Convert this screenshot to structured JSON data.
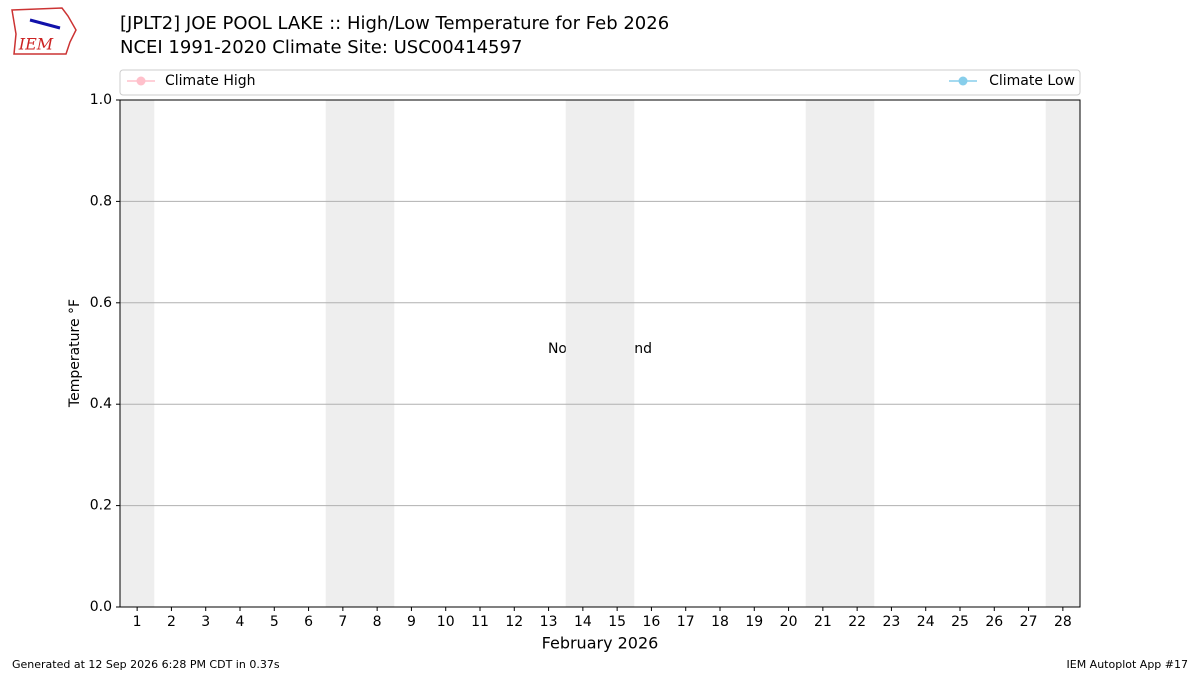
{
  "logo_text": "IEM",
  "chart_data": {
    "type": "line",
    "title": "[JPLT2] JOE POOL LAKE :: High/Low Temperature for Feb 2026",
    "subtitle": "NCEI 1991-2020 Climate Site: USC00414597",
    "xlabel": "February 2026",
    "ylabel": "Temperature °F",
    "annotation": "No Data Found",
    "x": [],
    "series": [
      {
        "name": "Climate High",
        "color": "#ffc0cb",
        "values": []
      },
      {
        "name": "Climate Low",
        "color": "#87ceeb",
        "values": []
      }
    ],
    "xlim": [
      0.5,
      28.5
    ],
    "xticks": [
      1,
      2,
      3,
      4,
      5,
      6,
      7,
      8,
      9,
      10,
      11,
      12,
      13,
      14,
      15,
      16,
      17,
      18,
      19,
      20,
      21,
      22,
      23,
      24,
      25,
      26,
      27,
      28
    ],
    "ylim": [
      0,
      1
    ],
    "yticks": [
      {
        "value": 0,
        "label": "0.0"
      },
      0.2,
      0.4,
      0.6,
      0.8,
      {
        "value": 1,
        "label": "1.0"
      }
    ],
    "shaded_ranges": [
      [
        0.5,
        1.5
      ],
      [
        6.5,
        8.5
      ],
      [
        13.5,
        15.5
      ],
      [
        20.5,
        22.5
      ],
      [
        27.5,
        28.5
      ]
    ],
    "shade_color": "#eeeeee",
    "grid": true,
    "footer_left": "Generated at 12 Sep 2026 6:28 PM CDT in 0.37s",
    "footer_right": "IEM Autoplot App #17"
  }
}
